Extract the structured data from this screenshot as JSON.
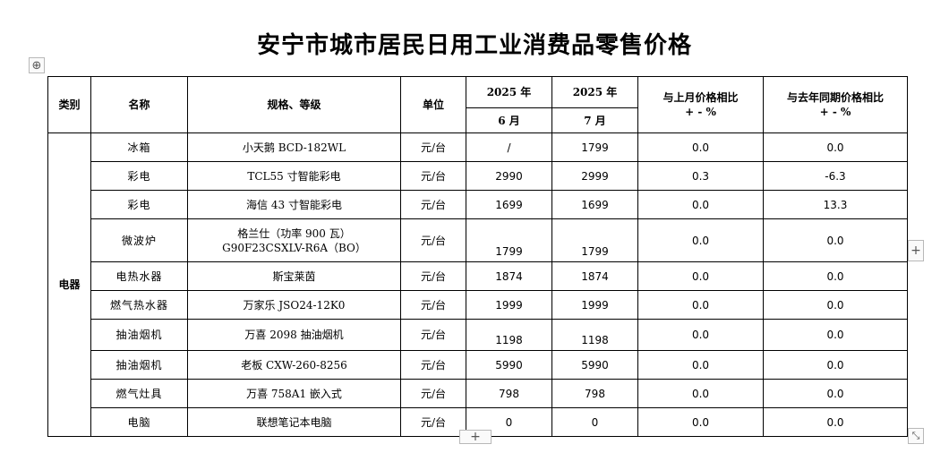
{
  "document": {
    "title": "安宁市城市居民日用工业消费品零售价格"
  },
  "controls": {
    "move_icon": "⊕",
    "add_col_icon": "+",
    "add_row_icon": "+",
    "resize_icon": "⤡"
  },
  "table": {
    "headers": {
      "category": "类别",
      "name": "名称",
      "spec": "规格、等级",
      "unit": "单位",
      "period1_year": "2025 年",
      "period1_month": "6 月",
      "period2_year": "2025 年",
      "period2_month": "7 月",
      "mom_line1": "与上月价格相比",
      "mom_line2": "+ - %",
      "yoy_line1": "与去年同期价格相比",
      "yoy_line2": "+ - %"
    },
    "category": "电器",
    "rows": [
      {
        "name": "冰箱",
        "spec": "小天鹅 BCD-182WL",
        "unit": "元/台",
        "june": "/",
        "july": "1799",
        "mom": "0.0",
        "yoy": "0.0"
      },
      {
        "name": "彩电",
        "spec": "TCL55 寸智能彩电",
        "unit": "元/台",
        "june": "2990",
        "july": "2999",
        "mom": "0.3",
        "yoy": "-6.3"
      },
      {
        "name": "彩电",
        "spec": "海信 43 寸智能彩电",
        "unit": "元/台",
        "june": "1699",
        "july": "1699",
        "mom": "0.0",
        "yoy": "13.3"
      },
      {
        "name": "微波炉",
        "spec_line1": "格兰仕（功率 900 瓦）",
        "spec_line2": "G90F23CSXLV-R6A（BO）",
        "unit": "元/台",
        "june": "1799",
        "july": "1799",
        "mom": "0.0",
        "yoy": "0.0"
      },
      {
        "name": "电热水器",
        "spec": "斯宝莱茵",
        "unit": "元/台",
        "june": "1874",
        "july": "1874",
        "mom": "0.0",
        "yoy": "0.0"
      },
      {
        "name": "燃气热水器",
        "spec": "万家乐 JSO24-12K0",
        "unit": "元/台",
        "june": "1999",
        "july": "1999",
        "mom": "0.0",
        "yoy": "0.0"
      },
      {
        "name": "抽油烟机",
        "spec": "万喜 2098 抽油烟机",
        "unit": "元/台",
        "june": "1198",
        "july": "1198",
        "mom": "0.0",
        "yoy": "0.0"
      },
      {
        "name": "抽油烟机",
        "spec": "老板 CXW-260-8256",
        "unit": "元/台",
        "june": "5990",
        "july": "5990",
        "mom": "0.0",
        "yoy": "0.0"
      },
      {
        "name": "燃气灶具",
        "spec": "万喜 758A1 嵌入式",
        "unit": "元/台",
        "june": "798",
        "july": "798",
        "mom": "0.0",
        "yoy": "0.0"
      },
      {
        "name": "电脑",
        "spec": "联想笔记本电脑",
        "unit": "元/台",
        "june": "0",
        "july": "0",
        "mom": "0.0",
        "yoy": "0.0"
      }
    ]
  }
}
